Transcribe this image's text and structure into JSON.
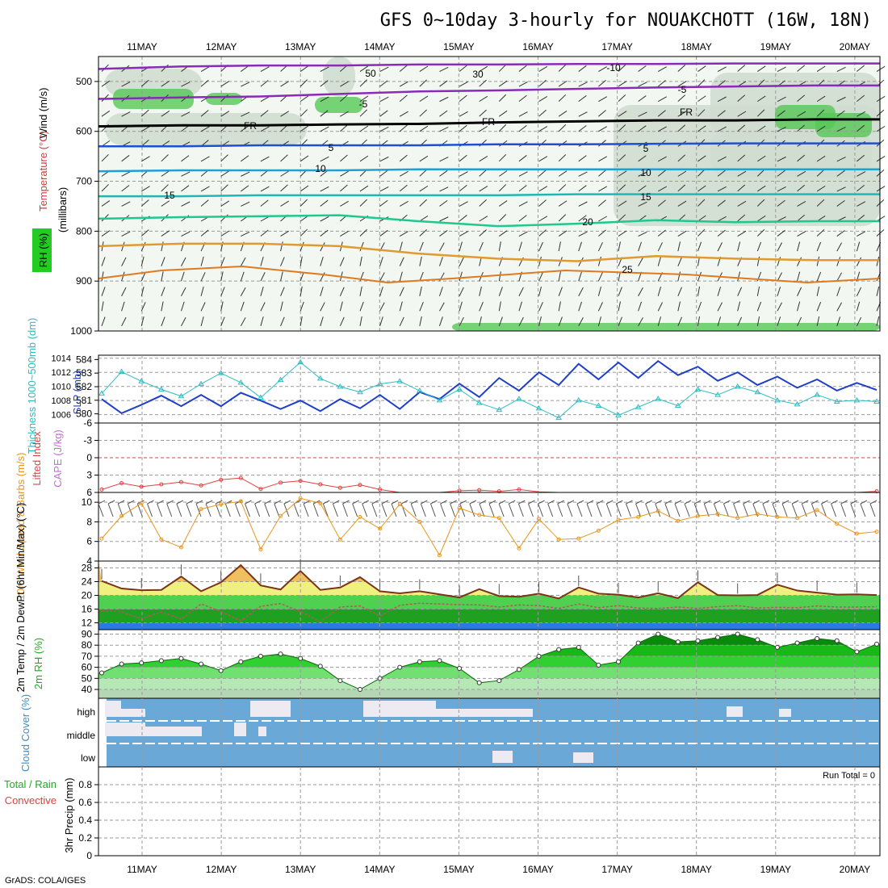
{
  "title": "GFS 0~10day 3-hourly for NOUAKCHOTT (16W, 18N)",
  "credit": "GrADS: COLA/IGES",
  "run_total_label": "Run Total = 0",
  "colors": {
    "slp": "#1f3fc8",
    "thickness": "#2fbcc0",
    "cape_line": "#e04040",
    "wind10": "#e8961e",
    "temp": "#7a3418",
    "dewpt": "#b05a5a",
    "rh_green": "#22cc22",
    "cloud_blue": "#6aa8d8",
    "cloud_clear": "#eeeaf2"
  },
  "chart_data": [
    {
      "type": "heatmap",
      "ylabel": "(millibars)",
      "side_labels": [
        "Wind (m/s)",
        "Temperature (°C)",
        "RH (%)"
      ],
      "x_ticks": [
        "11MAY",
        "12MAY",
        "13MAY",
        "14MAY",
        "15MAY",
        "16MAY",
        "17MAY",
        "18MAY",
        "19MAY",
        "20MAY"
      ],
      "y_ticks": [
        500,
        600,
        700,
        800,
        900,
        1000
      ],
      "ylim": [
        1000,
        450
      ],
      "contour_labels": [
        "-10",
        "-5",
        "FR",
        "5",
        "10",
        "15",
        "20",
        "25",
        "30",
        "50"
      ],
      "isotherms": [
        {
          "name": "-10",
          "values": [
            475,
            470,
            468,
            468,
            466,
            466,
            465,
            465,
            464,
            464
          ]
        },
        {
          "name": "-5",
          "values": [
            535,
            532,
            530,
            525,
            520,
            518,
            515,
            512,
            510,
            508
          ]
        },
        {
          "name": "FR",
          "values": [
            590,
            588,
            588,
            586,
            585,
            582,
            580,
            578,
            578,
            576
          ]
        },
        {
          "name": "5",
          "values": [
            630,
            630,
            628,
            628,
            628,
            626,
            626,
            625,
            624,
            624
          ]
        },
        {
          "name": "10",
          "values": [
            680,
            678,
            678,
            678,
            676,
            676,
            676,
            676,
            676,
            676
          ]
        },
        {
          "name": "15",
          "values": [
            730,
            730,
            728,
            728,
            728,
            728,
            726,
            726,
            726,
            726
          ]
        },
        {
          "name": "20",
          "values": [
            775,
            772,
            770,
            768,
            780,
            790,
            785,
            778,
            782,
            780
          ]
        },
        {
          "name": "25",
          "values": [
            830,
            825,
            825,
            830,
            845,
            855,
            860,
            850,
            855,
            858
          ]
        }
      ]
    },
    {
      "type": "line",
      "ylabel": "Thickness 1000~500mb (dm)",
      "y2label": "SLP (mb)",
      "y_ticks": [
        580,
        581,
        582,
        583,
        584
      ],
      "y2_ticks": [
        1006,
        1008,
        1010,
        1012,
        1014
      ],
      "series": [
        {
          "name": "SLP (mb)",
          "values": [
            1008.2,
            1006.2,
            1007.4,
            1008.7,
            1007.2,
            1008.8,
            1007.2,
            1009.1,
            1008.0,
            1006.8,
            1008.0,
            1006.5,
            1008.2,
            1006.9,
            1008.8,
            1006.8,
            1009.2,
            1008.2,
            1010.4,
            1008.5,
            1011.2,
            1009.4,
            1012.0,
            1010.2,
            1013.2,
            1011.0,
            1013.4,
            1011.2,
            1013.6,
            1011.6,
            1012.8,
            1010.8,
            1012.0,
            1010.2,
            1011.4,
            1009.8,
            1011.0,
            1009.4,
            1010.5,
            1009.5
          ]
        },
        {
          "name": "Thickness 1000~500mb (dm)",
          "values": [
            581.5,
            583.1,
            582.4,
            581.8,
            581.3,
            582.2,
            583.0,
            582.3,
            581.2,
            582.5,
            583.8,
            582.6,
            582.0,
            581.6,
            582.2,
            582.4,
            581.7,
            581.0,
            581.8,
            580.8,
            580.3,
            581.1,
            580.4,
            579.7,
            581.0,
            580.6,
            579.9,
            580.5,
            581.1,
            580.6,
            581.8,
            581.4,
            582.0,
            581.6,
            581.0,
            580.7,
            581.4,
            580.9,
            581.0,
            580.9
          ]
        }
      ]
    },
    {
      "type": "line",
      "ylabel": "Lifted Index",
      "y2label": "CAPE (J/kg)",
      "y_ticks": [
        -6,
        -3,
        0,
        3,
        6
      ],
      "series": [
        {
          "name": "Lifted Index",
          "values": [
            5.5,
            4.4,
            5.0,
            4.6,
            4.2,
            4.8,
            3.8,
            3.5,
            5.4,
            4.3,
            4.0,
            4.6,
            5.2,
            4.7,
            5.5,
            6.0,
            6.0,
            6.0,
            5.7,
            5.6,
            5.8,
            5.5,
            5.9,
            6.0,
            6.0,
            6.0,
            6.0,
            6.0,
            6.0,
            6.0,
            6.0,
            6.0,
            6.0,
            6.0,
            6.0,
            6.0,
            6.0,
            6.0,
            6.0,
            5.8
          ]
        }
      ]
    },
    {
      "type": "line",
      "ylabel": "10m Wind Speed & Barbs (m/s)",
      "y_ticks": [
        4,
        6,
        8,
        10
      ],
      "series": [
        {
          "name": "10m Wind Speed",
          "values": [
            6.3,
            8.6,
            9.9,
            6.2,
            5.4,
            9.3,
            9.8,
            10.1,
            5.2,
            8.6,
            10.4,
            9.9,
            6.2,
            8.5,
            7.3,
            9.8,
            8.0,
            4.6,
            9.4,
            8.7,
            8.4,
            5.3,
            8.3,
            6.2,
            6.3,
            7.1,
            8.2,
            8.5,
            9.1,
            8.1,
            8.6,
            8.8,
            8.4,
            8.8,
            8.5,
            8.4,
            9.2,
            7.8,
            6.8,
            7.0
          ]
        }
      ]
    },
    {
      "type": "area",
      "ylabel": "2m Temp / 2m DewPt (6hr Min/Max) (°C)",
      "y_ticks": [
        12,
        16,
        20,
        24,
        28
      ],
      "series": [
        {
          "name": "2m Temp",
          "values": [
            24.2,
            22.0,
            21.5,
            21.6,
            25.5,
            21.2,
            23.8,
            28.8,
            22.9,
            21.7,
            27.1,
            21.6,
            22.3,
            25.3,
            21.2,
            20.6,
            21.2,
            20.3,
            19.4,
            21.8,
            19.8,
            19.6,
            20.5,
            19.1,
            22.3,
            20.5,
            20.2,
            19.4,
            20.6,
            19.2,
            23.8,
            20.1,
            20.0,
            20.1,
            23.1,
            21.4,
            20.8,
            20.2,
            20.3,
            20.1
          ]
        },
        {
          "name": "2m DewPt",
          "values": [
            15.5,
            15.2,
            13.2,
            15.2,
            13.1,
            17.5,
            15.3,
            12.6,
            16.8,
            17.6,
            15.3,
            12.3,
            16.6,
            16.9,
            14.0,
            17.1,
            17.7,
            17.5,
            17.3,
            17.2,
            16.6,
            17.2,
            17.0,
            16.2,
            17.5,
            16.4,
            17.0,
            16.3,
            16.2,
            16.6,
            16.2,
            16.7,
            17.0,
            16.3,
            16.5,
            16.4,
            16.9,
            16.6,
            16.6,
            16.7
          ]
        }
      ]
    },
    {
      "type": "area",
      "ylabel": "2m RH (%)",
      "y_ticks": [
        40,
        50,
        60,
        70,
        80,
        90
      ],
      "series": [
        {
          "name": "2m RH",
          "values": [
            55,
            63,
            64,
            66,
            68,
            63,
            57,
            65,
            70,
            72,
            68,
            61,
            48,
            40,
            50,
            60,
            65,
            66,
            59,
            46,
            48,
            58,
            70,
            76,
            78,
            62,
            65,
            82,
            90,
            83,
            84,
            87,
            90,
            85,
            78,
            82,
            86,
            84,
            74,
            81
          ]
        }
      ]
    },
    {
      "type": "heatmap",
      "ylabel": "Cloud Cover (%)",
      "rows": [
        "high",
        "middle",
        "low"
      ],
      "note": "mostly clear sky; scattered high cloud, some middle and low cloud"
    },
    {
      "type": "line",
      "ylabel": "3hr Precip (mm)",
      "series_labels": [
        "Total / Rain",
        "Convective"
      ],
      "y_ticks": [
        0,
        0.2,
        0.4,
        0.6,
        0.8
      ],
      "ylim": [
        0,
        1
      ]
    }
  ]
}
